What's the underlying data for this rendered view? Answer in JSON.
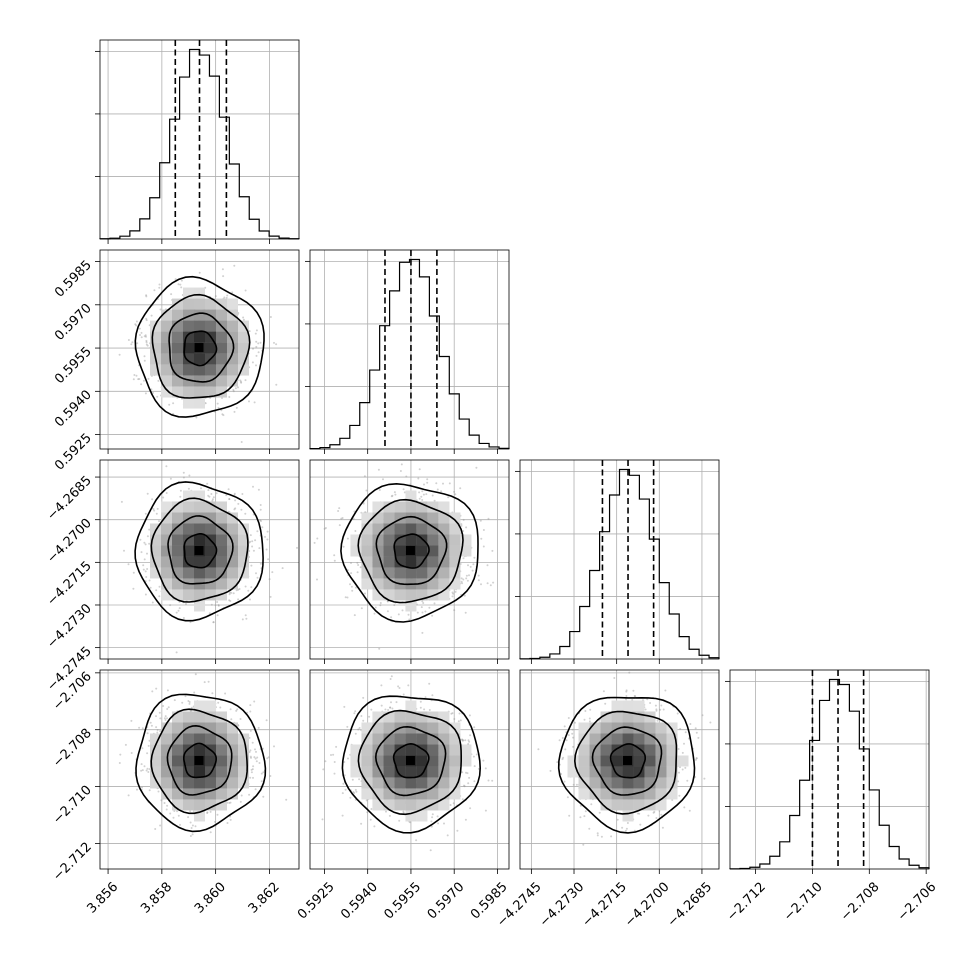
{
  "chart_data": {
    "type": "corner",
    "parameters": [
      {
        "name": "",
        "mean": 3.8594,
        "std": 0.00095,
        "range": [
          3.8557,
          3.8631
        ],
        "ticks": [
          "3.856",
          "3.858",
          "3.860",
          "3.862"
        ],
        "tick_values": [
          3.856,
          3.858,
          3.86,
          3.862
        ],
        "quantiles": [
          3.8585,
          3.8594,
          3.8604
        ]
      },
      {
        "name": "",
        "mean": 0.5955,
        "std": 0.00095,
        "range": [
          0.592,
          0.5989
        ],
        "ticks": [
          "0.5925",
          "0.5940",
          "0.5955",
          "0.5970",
          "0.5985"
        ],
        "tick_values": [
          0.5925,
          0.594,
          0.5955,
          0.597,
          0.5985
        ],
        "quantiles": [
          0.5946,
          0.5955,
          0.5964
        ]
      },
      {
        "name": "",
        "mean": -4.2711,
        "std": 0.00095,
        "range": [
          -4.2749,
          -4.2679
        ],
        "ticks": [
          "−4.2745",
          "−4.2730",
          "−4.2715",
          "−4.2700",
          "−4.2685"
        ],
        "tick_values": [
          -4.2745,
          -4.273,
          -4.2715,
          -4.27,
          -4.2685
        ],
        "quantiles": [
          -4.272,
          -4.2711,
          -4.2702
        ]
      },
      {
        "name": "",
        "mean": -2.7091,
        "std": 0.00095,
        "range": [
          -2.7129,
          -2.7059
        ],
        "ticks": [
          "−2.712",
          "−2.710",
          "−2.708",
          "−2.706"
        ],
        "tick_values": [
          -2.712,
          -2.71,
          -2.708,
          -2.706
        ],
        "quantiles": [
          -2.71,
          -2.7091,
          -2.7082
        ]
      }
    ],
    "histogram_bins": 20,
    "contour_levels_sigma": [
      0.5,
      1.0,
      1.5,
      2.0
    ],
    "grid": true,
    "legend": "none",
    "colors": {
      "line": "#000000",
      "grid": "#b0b0b0",
      "points": "#9a9a9a"
    }
  }
}
